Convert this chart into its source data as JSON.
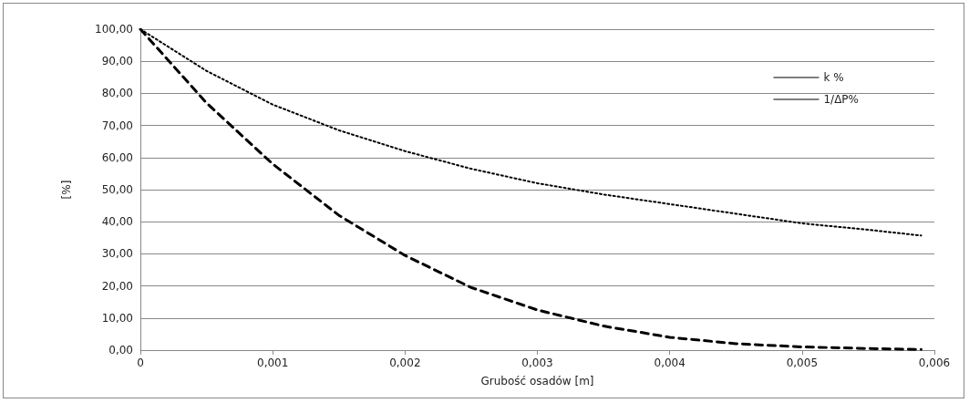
{
  "chart_data": {
    "type": "line",
    "xlabel": "Grubość osadów [m]",
    "ylabel": "[%]",
    "xlim": [
      0,
      0.006
    ],
    "xticks": [
      {
        "value": 0,
        "label": "0"
      },
      {
        "value": 0.001,
        "label": "0,001"
      },
      {
        "value": 0.002,
        "label": "0,002"
      },
      {
        "value": 0.003,
        "label": "0,003"
      },
      {
        "value": 0.004,
        "label": "0,004"
      },
      {
        "value": 0.005,
        "label": "0,005"
      },
      {
        "value": 0.006,
        "label": "0,006"
      }
    ],
    "ylim": [
      0,
      100
    ],
    "yticks": [
      {
        "value": 0,
        "label": "0,00"
      },
      {
        "value": 10,
        "label": "10,00"
      },
      {
        "value": 20,
        "label": "20,00"
      },
      {
        "value": 30,
        "label": "30,00"
      },
      {
        "value": 40,
        "label": "40,00"
      },
      {
        "value": 50,
        "label": "50,00"
      },
      {
        "value": 60,
        "label": "60,00"
      },
      {
        "value": 70,
        "label": "70,00"
      },
      {
        "value": 80,
        "label": "80,00"
      },
      {
        "value": 90,
        "label": "90,00"
      },
      {
        "value": 100,
        "label": "100,00"
      }
    ],
    "grid": "y",
    "legend": "right",
    "marker": "none",
    "x": [
      0,
      0.0005,
      0.001,
      0.0015,
      0.002,
      0.0025,
      0.003,
      0.0035,
      0.004,
      0.0045,
      0.005,
      0.0055,
      0.0059
    ],
    "series": [
      {
        "name": "k %",
        "color": "#000000",
        "line_style": "dotted",
        "values": [
          100,
          87,
          76.5,
          68.5,
          62,
          56.5,
          52,
          48.5,
          45.5,
          42.5,
          39.5,
          37.5,
          35.7
        ]
      },
      {
        "name": "1/ΔP%",
        "color": "#000000",
        "line_style": "dashed",
        "values": [
          100,
          77,
          58,
          42,
          29.5,
          19.5,
          12.5,
          7.5,
          4,
          2,
          1,
          0.5,
          0.2
        ]
      }
    ]
  }
}
